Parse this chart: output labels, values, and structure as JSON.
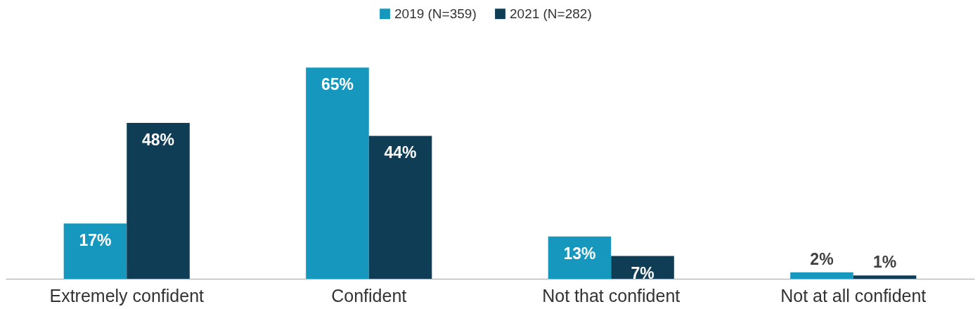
{
  "chart_data": {
    "type": "bar",
    "categories": [
      "Extremely confident",
      "Confident",
      "Not that confident",
      "Not at all confident"
    ],
    "series": [
      {
        "name": "2019 (N=359)",
        "color": "#1697bd",
        "values": [
          17,
          65,
          13,
          2
        ],
        "value_labels": [
          "17%",
          "65%",
          "13%",
          "2%"
        ]
      },
      {
        "name": "2021 (N=282)",
        "color": "#0f3d55",
        "values": [
          48,
          44,
          7,
          1
        ],
        "value_labels": [
          "48%",
          "44%",
          "7%",
          "1%"
        ]
      }
    ],
    "legend": "top"
  }
}
